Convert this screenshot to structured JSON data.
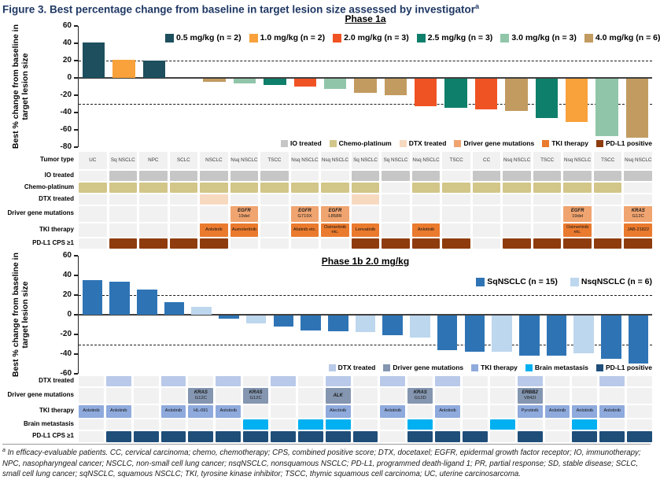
{
  "figure_title": {
    "text": "Figure 3. Best percentage change from baseline in target lesion size assessed by investigator",
    "superscript": "a"
  },
  "footnote": {
    "superscript": "a",
    "text": " In efficacy-evaluable patients. CC, cervical carcinoma; chemo, chemotherapy; CPS, combined positive score; DTX, docetaxel; EGFR, epidermal growth factor receptor; IO, immunotherapy; NPC, nasopharyngeal cancer; NSCLC, non-small cell lung cancer; nsqNSCLC, nonsquamous NSCLC; PD-L1, programmed death-ligand 1; PR, partial response; SD, stable disease; SCLC, small cell lung cancer; sqNSCLC, squamous NSCLC; TKI, tyrosine kinase inhibitor; TSCC, thymic squamous cell carcinoma; UC, uterine carcinosarcoma."
  },
  "colors": {
    "title": "#1f3864",
    "empty_cell": "#f1f1f1",
    "phase1a_rows": {
      "io": "#c6c6c6",
      "chemo": "#d2c689",
      "dtx": "#f7d9c0",
      "driver": "#f0a470",
      "tki": "#ea7a2e",
      "pdl1": "#8e3c0e"
    },
    "phase1b_rows": {
      "dtx": "#b9c9e9",
      "driver": "#8496b0",
      "tki": "#8faadc",
      "brain": "#00b0f0",
      "pdl1": "#1f4e79"
    }
  },
  "chart_data": [
    {
      "id": "phase1a",
      "type": "bar",
      "title": "Phase 1a",
      "ylabel": "Best % change from baseline in target lesion size",
      "ylim": [
        -80,
        60
      ],
      "yticks": [
        60,
        40,
        20,
        0,
        -20,
        -40,
        -60,
        -80
      ],
      "reference_lines": [
        20,
        -30
      ],
      "grid": false,
      "legend_position": "top",
      "legend": [
        {
          "key": "0.5",
          "label": "0.5 mg/kg (n = 2)",
          "color": "#1d4f5e"
        },
        {
          "key": "1.0",
          "label": "1.0 mg/kg (n = 2)",
          "color": "#f9a13a"
        },
        {
          "key": "2.0",
          "label": "2.0 mg/kg (n = 3)",
          "color": "#f05323"
        },
        {
          "key": "2.5",
          "label": "2.5 mg/kg (n = 3)",
          "color": "#0e7f6a"
        },
        {
          "key": "3.0",
          "label": "3.0 mg/kg (n = 3)",
          "color": "#90c5a9"
        },
        {
          "key": "4.0",
          "label": "4.0 mg/kg (n = 6)",
          "color": "#c29b60"
        }
      ],
      "values": [
        41,
        21,
        20,
        0,
        -4,
        -5,
        -7,
        -9,
        -12,
        -16,
        -19,
        -32,
        -34,
        -35,
        -37,
        -45,
        -50,
        -66,
        -68
      ],
      "doses": [
        "0.5",
        "1.0",
        "0.5",
        "4.0",
        "4.0",
        "3.0",
        "2.5",
        "2.0",
        "3.0",
        "4.0",
        "4.0",
        "2.0",
        "2.5",
        "2.0",
        "4.0",
        "2.5",
        "1.0",
        "3.0",
        "4.0"
      ]
    },
    {
      "id": "phase1b",
      "type": "bar",
      "title": "Phase 1b 2.0 mg/kg",
      "ylabel": "Best % change from baseline in target lesion size",
      "ylim": [
        -60,
        60
      ],
      "yticks": [
        60,
        40,
        20,
        0,
        -20,
        -40,
        -60
      ],
      "reference_lines": [
        20,
        -30
      ],
      "grid": false,
      "legend_position": "top-right",
      "legend": [
        {
          "key": "Sq",
          "label": "SqNSCLC (n = 15)",
          "color": "#2e74b5"
        },
        {
          "key": "Nsq",
          "label": "NsqNSCLC (n = 6)",
          "color": "#bdd7ee"
        }
      ],
      "values": [
        35,
        34,
        26,
        13,
        8,
        -3,
        -8,
        -11,
        -15,
        -16,
        -17,
        -20,
        -22,
        -35,
        -37,
        -37,
        -41,
        -41,
        -38,
        -44,
        -49
      ],
      "groups": [
        "Sq",
        "Sq",
        "Sq",
        "Sq",
        "Nsq",
        "Sq",
        "Nsq",
        "Sq",
        "Sq",
        "Sq",
        "Nsq",
        "Sq",
        "Nsq",
        "Sq",
        "Sq",
        "Nsq",
        "Sq",
        "Sq",
        "Nsq",
        "Sq",
        "Sq"
      ]
    }
  ],
  "phase1a_row_legend": [
    {
      "label": "IO treated",
      "color": "#c6c6c6"
    },
    {
      "label": "Chemo-platinum",
      "color": "#d2c689"
    },
    {
      "label": "DTX treated",
      "color": "#f7d9c0"
    },
    {
      "label": "Driver gene mutations",
      "color": "#f0a470"
    },
    {
      "label": "TKI therapy",
      "color": "#ea7a2e"
    },
    {
      "label": "PD-L1 positive",
      "color": "#8e3c0e"
    }
  ],
  "phase1b_row_legend": [
    {
      "label": "DTX treated",
      "color": "#b9c9e9"
    },
    {
      "label": "Driver gene mutations",
      "color": "#8496b0"
    },
    {
      "label": "TKI therapy",
      "color": "#8faadc"
    },
    {
      "label": "Brain metastasis",
      "color": "#00b0f0"
    },
    {
      "label": "PD-L1 positive",
      "color": "#1f4e79"
    }
  ],
  "phase1a_table": {
    "columns": 19,
    "rows": [
      {
        "label": "Tumor type",
        "type": "text",
        "values": [
          "UC",
          "Sq NSCLC",
          "NPC",
          "SCLC",
          "NSCLC",
          "Nsq NSCLC",
          "TSCC",
          "Nsq NSCLC",
          "Nsq NSCLC",
          "Sq NSCLC",
          "Sq NSCLC",
          "Nsq NSCLC",
          "TSCC",
          "CC",
          "Nsq NSCLC",
          "TSCC",
          "Nsq NSCLC",
          "TSCC",
          "Nsq NSCLC"
        ]
      },
      {
        "label": "IO treated",
        "type": "fill",
        "color_key": "io",
        "filled": [
          2,
          3,
          4,
          5,
          6,
          7,
          10,
          11,
          12,
          14,
          15,
          16,
          17,
          18,
          19
        ]
      },
      {
        "label": "Chemo-platinum",
        "type": "fill",
        "color_key": "chemo",
        "filled": [
          1,
          2,
          3,
          4,
          5,
          6,
          7,
          8,
          9,
          10,
          12,
          13,
          14,
          15,
          16,
          17,
          18
        ]
      },
      {
        "label": "DTX treated",
        "type": "fill",
        "color_key": "dtx",
        "filled": [
          5,
          10
        ]
      },
      {
        "label": "Driver gene mutations",
        "type": "gene",
        "color_key": "driver",
        "cells": [
          {
            "col": 6,
            "gene": "EGFR",
            "variant": "19del"
          },
          {
            "col": 8,
            "gene": "EGFR",
            "variant": "G719X"
          },
          {
            "col": 9,
            "gene": "EGFR",
            "variant": "L858R"
          },
          {
            "col": 17,
            "gene": "EGFR",
            "variant": "19del"
          },
          {
            "col": 19,
            "gene": "KRAS",
            "variant": "G12C"
          }
        ]
      },
      {
        "label": "TKI therapy",
        "type": "chip",
        "color_key": "tki",
        "cells": [
          {
            "col": 5,
            "label": "Anlotinib"
          },
          {
            "col": 6,
            "label": "Aumolertinib"
          },
          {
            "col": 8,
            "label": "Afatinib etc."
          },
          {
            "col": 9,
            "label": "Osimertinib etc."
          },
          {
            "col": 10,
            "label": "Lenvatinib"
          },
          {
            "col": 12,
            "label": "Anlotinib"
          },
          {
            "col": 17,
            "label": "Osimertinib etc."
          },
          {
            "col": 19,
            "label": "JAB-21822"
          }
        ]
      },
      {
        "label": "PD-L1 CPS ≥1",
        "type": "fill",
        "color_key": "pdl1",
        "filled": [
          2,
          3,
          4,
          5,
          10,
          11,
          12,
          13,
          15,
          16,
          17,
          18,
          19
        ]
      }
    ]
  },
  "phase1b_table": {
    "columns": 21,
    "rows": [
      {
        "label": "DTX treated",
        "type": "fill",
        "color_key": "dtx",
        "filled": [
          2,
          4,
          6,
          8,
          10,
          12,
          14,
          17,
          20
        ]
      },
      {
        "label": "Driver gene mutations",
        "type": "gene",
        "color_key": "driver",
        "cells": [
          {
            "col": 5,
            "gene": "KRAS",
            "variant": "G12C"
          },
          {
            "col": 7,
            "gene": "KRAS",
            "variant": "G12C"
          },
          {
            "col": 10,
            "gene": "ALK",
            "variant": ""
          },
          {
            "col": 13,
            "gene": "KRAS",
            "variant": "G12D"
          },
          {
            "col": 17,
            "gene": "ERBB2",
            "variant": "V842I"
          }
        ]
      },
      {
        "label": "TKI therapy",
        "type": "chip",
        "color_key": "tki",
        "cells": [
          {
            "col": 1,
            "label": "Anlotinib"
          },
          {
            "col": 2,
            "label": "Anlotinib"
          },
          {
            "col": 4,
            "label": "Anlotinib"
          },
          {
            "col": 5,
            "label": "HL-091"
          },
          {
            "col": 6,
            "label": "Anlotinib"
          },
          {
            "col": 10,
            "label": "Alectinib"
          },
          {
            "col": 12,
            "label": "Anlotinib"
          },
          {
            "col": 14,
            "label": "Anlotinib"
          },
          {
            "col": 17,
            "label": "Pyrotinib"
          },
          {
            "col": 18,
            "label": "Anlotinib"
          },
          {
            "col": 19,
            "label": "Anlotinib"
          },
          {
            "col": 20,
            "label": "Anlotinib"
          }
        ]
      },
      {
        "label": "Brain metastasis",
        "type": "fill",
        "color_key": "brain",
        "filled": [
          7,
          9,
          10,
          13,
          16,
          19
        ]
      },
      {
        "label": "PD-L1 CPS ≥1",
        "type": "fill",
        "color_key": "pdl1",
        "filled": [
          2,
          3,
          4,
          5,
          6,
          7,
          8,
          9,
          10,
          11,
          13,
          14,
          15,
          17,
          19,
          20,
          21
        ]
      }
    ]
  }
}
